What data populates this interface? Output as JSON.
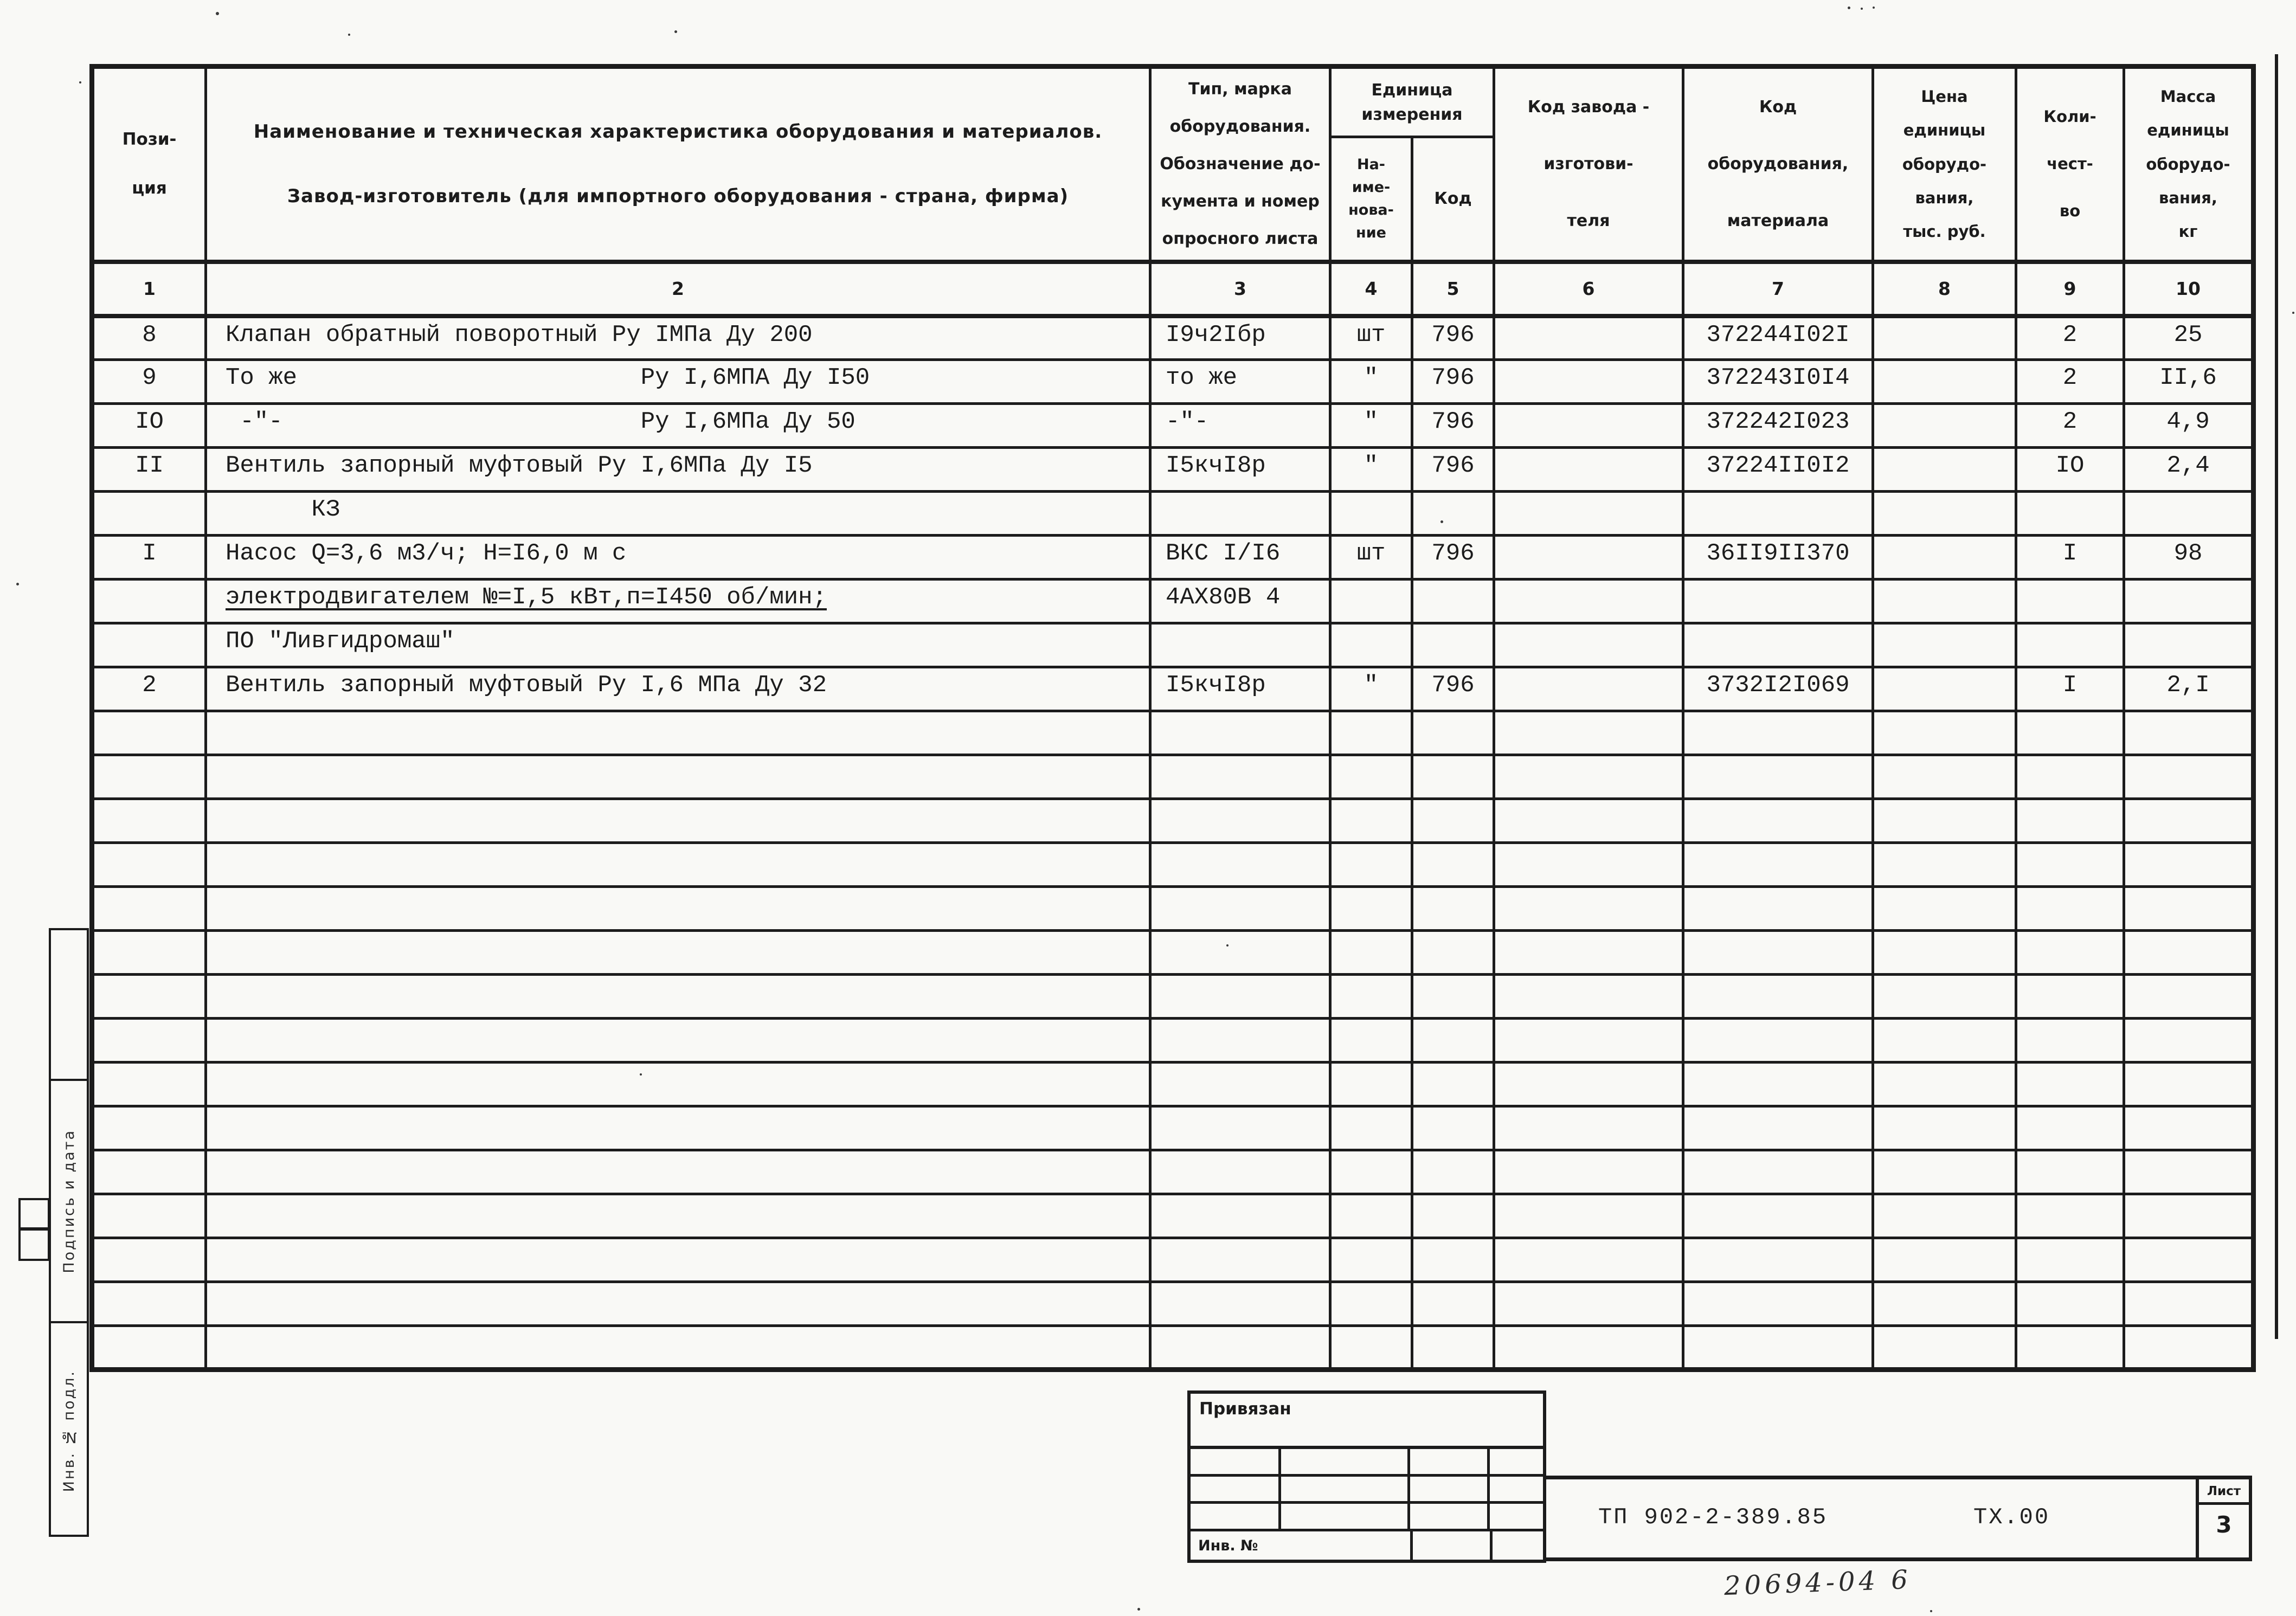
{
  "colors": {
    "ink": "#1c1c1c",
    "paper": "#f9f9f6"
  },
  "table": {
    "headers": {
      "col1": "Пози-\nция",
      "col2": "Наименование и техническая характеристика  оборудования и материалов.\n\nЗавод-изготовитель  (для импортного оборудования -  страна, фирма)",
      "col3": "Тип,    марка\nоборудования.\nОбозначение до-\nкумента и номер\nопросного листа",
      "unit_group": "Единица\nизмерения",
      "col4": "На-\nиме-\nнова-\nние",
      "col5": "Код",
      "col6": "Код  завода -\nизготови-\nтеля",
      "col7": "Код\nоборудования,\nматериала",
      "col8": "Цена\nединицы\nоборудо-\nвания,\nтыс. руб.",
      "col9": "Коли-\nчест-\nво",
      "col10": "Масса\nединицы\nоборудо-\nвания,\nкг",
      "numbers": [
        "1",
        "2",
        "3",
        "4",
        "5",
        "6",
        "7",
        "8",
        "9",
        "10"
      ]
    },
    "rows": [
      {
        "c1": "8",
        "c2": "Клапан обратный поворотный Ру IМПа Ду 200",
        "c3": "I9ч2Iбр",
        "c4": "шт",
        "c5": "796",
        "c7": "372244I02I",
        "c9": "2",
        "c10": "25"
      },
      {
        "c1": "9",
        "c2": "То же                        Ру I,6МПА Ду I50",
        "c3": "то же",
        "c4": "\"",
        "c5": "796",
        "c7": "372243I0I4",
        "c9": "2",
        "c10": "II,6"
      },
      {
        "c1": "IO",
        "c2": " -\"-                         Ру I,6МПа Ду 50",
        "c3": "-\"-",
        "c4": "\"",
        "c5": "796",
        "c7": "372242I023",
        "c9": "2",
        "c10": "4,9"
      },
      {
        "c1": "II",
        "c2": "Вентиль запорный муфтовый Ру I,6МПа Ду I5",
        "c3": "I5кчI8р",
        "c4": "\"",
        "c5": "796",
        "c7": "37224II0I2",
        "c9": "IO",
        "c10": "2,4"
      },
      {
        "c2": "      КЗ"
      },
      {
        "c1": "I",
        "c2": "Насос Q=3,6 м3/ч; Н=I6,0 м с",
        "c3": "ВКС I/I6",
        "c4": "шт",
        "c5": "796",
        "c7": "36II9II370",
        "c9": "I",
        "c10": "98"
      },
      {
        "c2": "электродвигателем №=I,5 кВт,п=I450 об/мин;",
        "c3": "4АХ80В 4",
        "u": true
      },
      {
        "c2": "ПО \"Ливгидромаш\""
      },
      {
        "c1": "2",
        "c2": "Вентиль запорный муфтовый Ру I,6 МПа Ду 32",
        "c3": "I5кчI8р",
        "c4": "\"",
        "c5": "796",
        "c7": "3732I2I069",
        "c9": "I",
        "c10": "2,I"
      },
      {},
      {},
      {},
      {},
      {},
      {},
      {},
      {},
      {},
      {},
      {},
      {},
      {},
      {},
      {}
    ]
  },
  "stamp": {
    "upper_label": "Подпись и дата",
    "lower_label": "Инв. № подл."
  },
  "title_block": {
    "privyazan_label": "Привязан",
    "inv_label": "Инв. №",
    "doc_number": "ТП 902-2-389.85",
    "doc_code": "ТХ.00",
    "sheet_label": "Лист",
    "sheet_number": "3"
  },
  "annotations": {
    "handwritten": "20694-04  6"
  }
}
